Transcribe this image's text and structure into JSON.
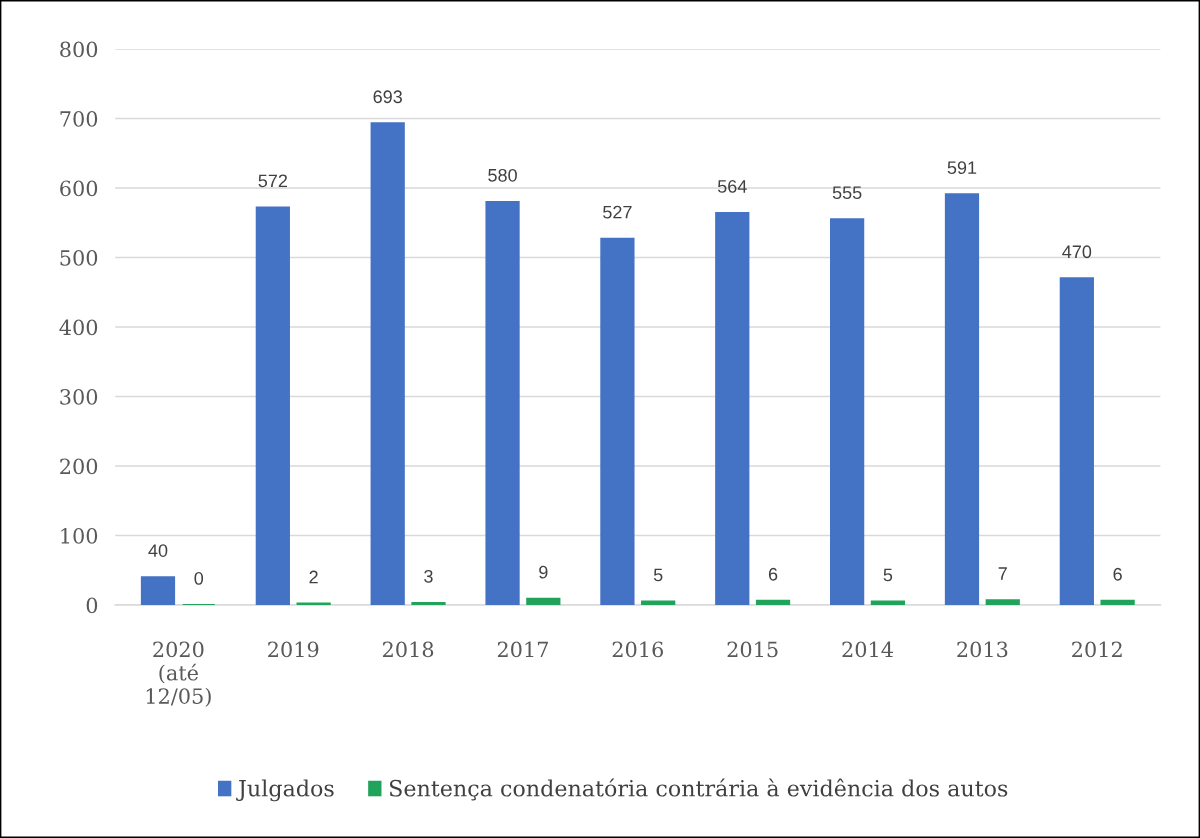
{
  "chart_data": {
    "type": "bar",
    "categories": [
      "2020\n(até\n12/05)",
      "2019",
      "2018",
      "2017",
      "2016",
      "2015",
      "2014",
      "2013",
      "2012"
    ],
    "series": [
      {
        "name": "Julgados",
        "color": "#4472c4",
        "values": [
          40,
          572,
          693,
          580,
          527,
          564,
          555,
          591,
          470
        ]
      },
      {
        "name": "Sentença condenatória contrária à evidência dos autos",
        "color": "#21a35b",
        "values": [
          0,
          2,
          3,
          9,
          5,
          6,
          5,
          7,
          6
        ]
      }
    ],
    "ylim": [
      0,
      800
    ],
    "yticks": [
      0,
      100,
      200,
      300,
      400,
      500,
      600,
      700,
      800
    ],
    "grid": "y",
    "legend": "bottom",
    "data_labels": true
  }
}
